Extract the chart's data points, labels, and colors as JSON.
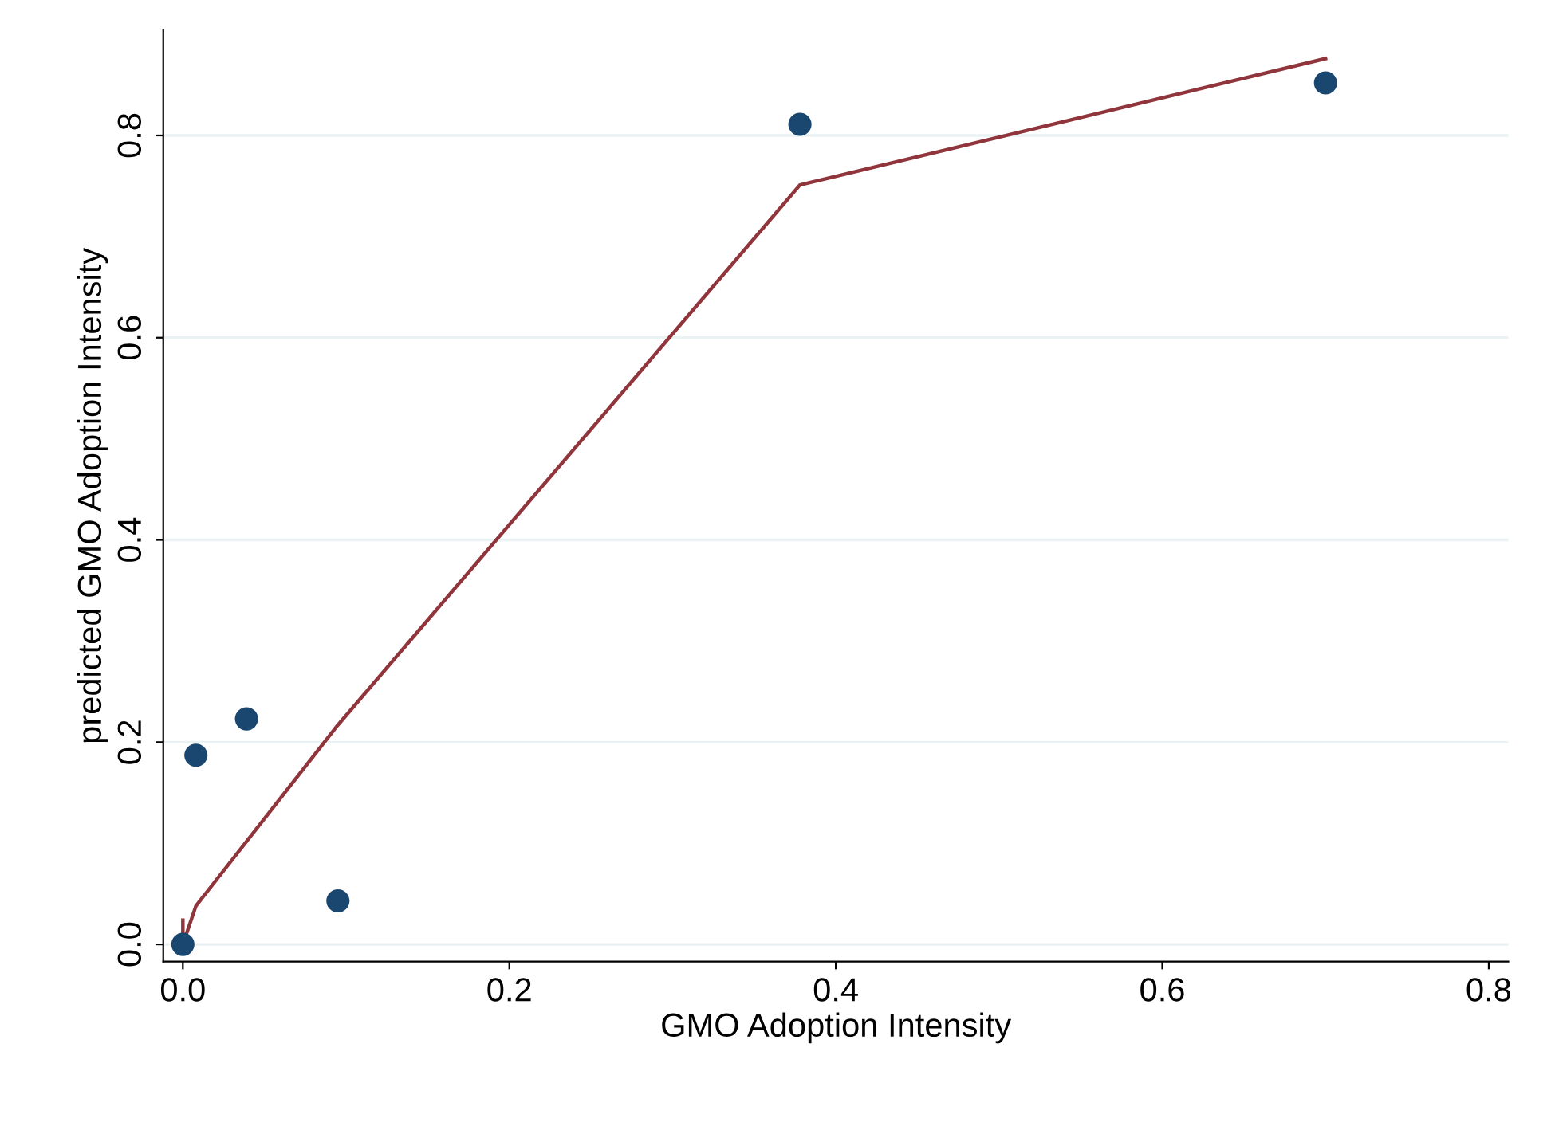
{
  "chart_data": {
    "type": "scatter",
    "xlabel": "GMO Adoption Intensity",
    "ylabel": "predicted GMO Adoption Intensity",
    "series": [
      {
        "color": "#1a476f",
        "marker": "circle",
        "x": [
          0,
          0.008,
          0.039,
          0.095,
          0.378,
          0.7
        ],
        "values": [
          0,
          0.187,
          0.223,
          0.043,
          0.811,
          0.852
        ]
      },
      {
        "type": "line",
        "color": "#90353b",
        "marker": "none",
        "x": [
          0,
          0,
          0.008,
          0.095,
          0.378,
          0.7
        ],
        "values": [
          0.024,
          0,
          0.038,
          0.217,
          0.751,
          0.876
        ]
      }
    ],
    "xlim": [
      -0.012,
      0.812
    ],
    "ylim": [
      -0.017,
      0.904
    ],
    "xticks": [
      {
        "value": 0,
        "label": "0.0"
      },
      0.2,
      0.4,
      0.6,
      0.8
    ],
    "yticks": [
      {
        "value": 0,
        "label": "0.0"
      },
      0.2,
      0.4,
      0.6,
      0.8
    ],
    "grid": "y",
    "legend": false
  }
}
